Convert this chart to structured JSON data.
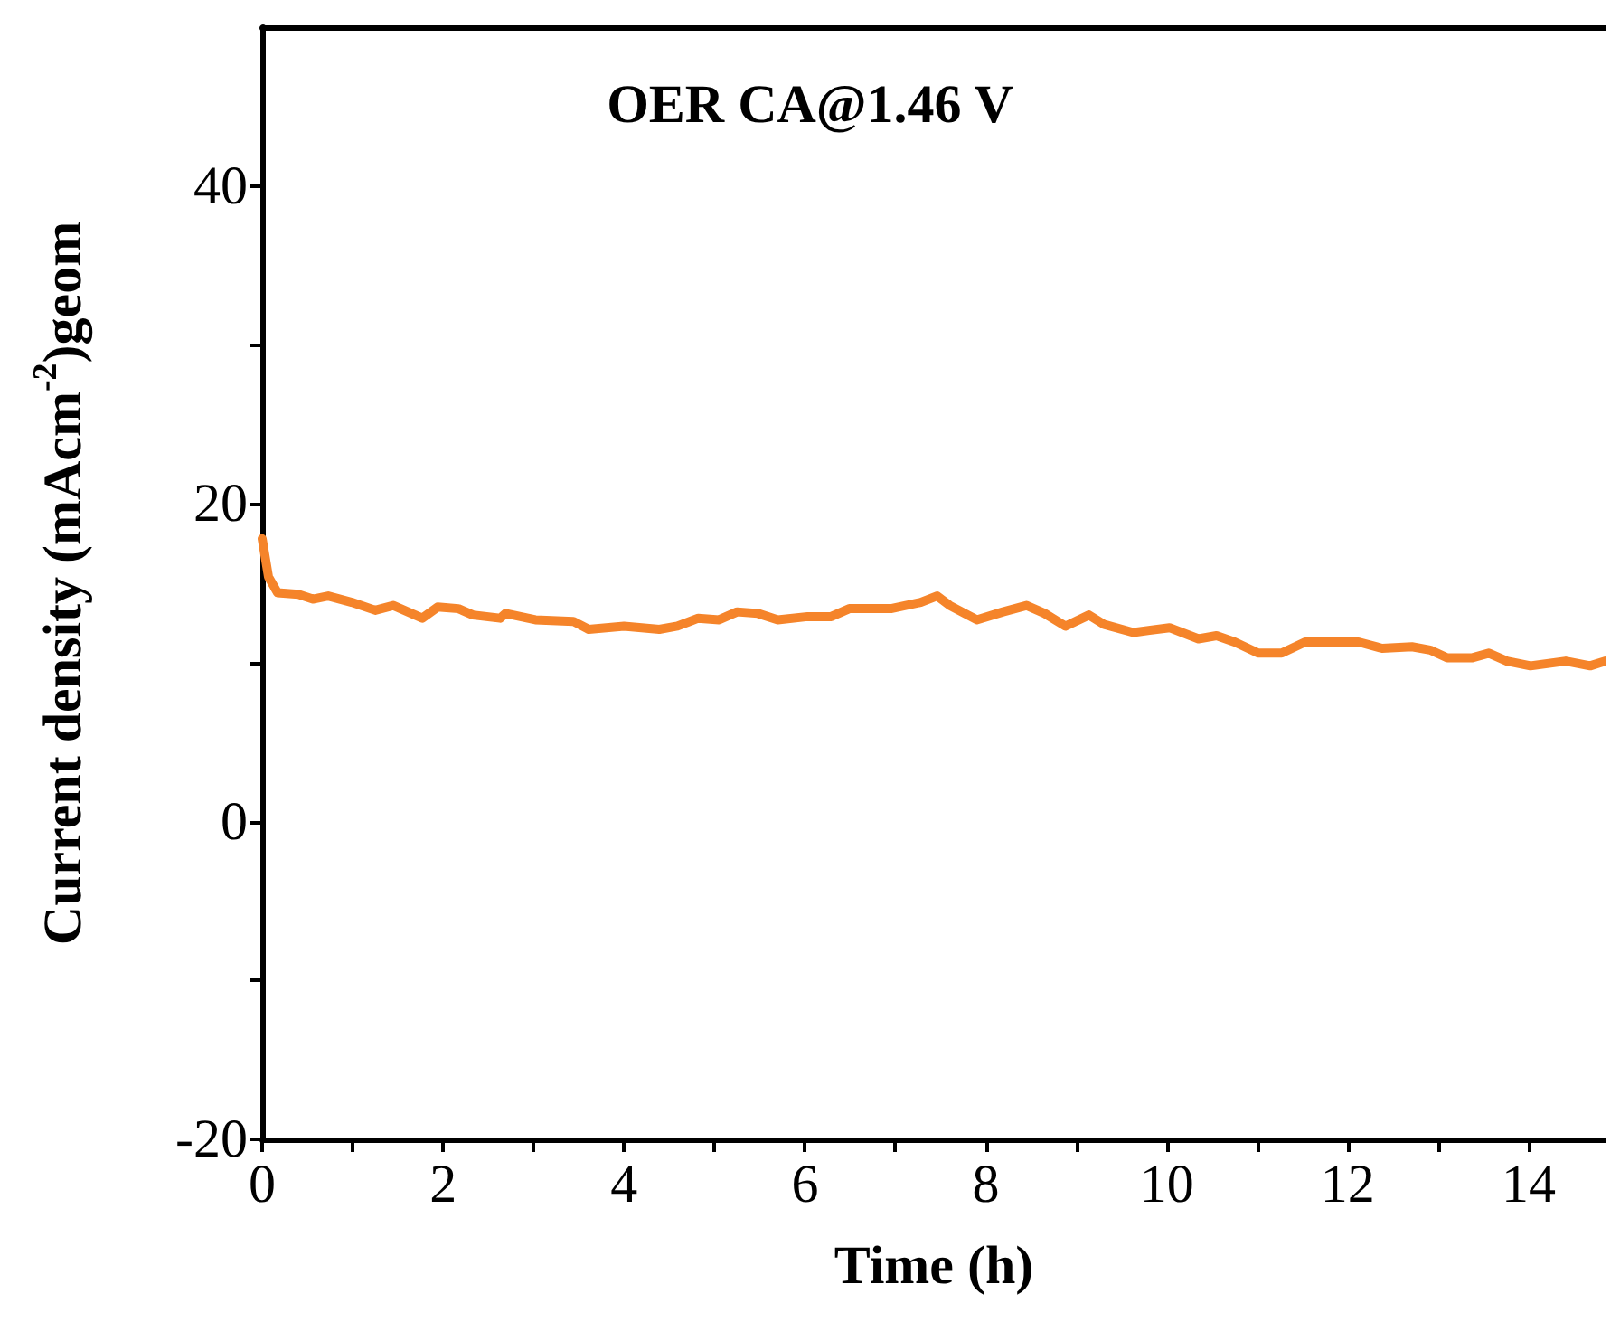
{
  "chart_data": {
    "type": "line",
    "title": "OER CA@1.46 V",
    "xlabel": "Time (h)",
    "ylabel": "Current density (mAcm$^{-2}$)geom",
    "xlim": [
      0,
      14.85
    ],
    "ylim": [
      -20,
      50
    ],
    "xticks": [
      0,
      {
        "value": 1,
        "label": null
      },
      2,
      {
        "value": 3,
        "label": null
      },
      4,
      {
        "value": 5,
        "label": null
      },
      6,
      {
        "value": 7,
        "label": null
      },
      8,
      {
        "value": 9,
        "label": null
      },
      10,
      {
        "value": 11,
        "label": null
      },
      12,
      {
        "value": 13,
        "label": null
      },
      14
    ],
    "yticks": [
      -20,
      {
        "value": -10,
        "label": null
      },
      0,
      {
        "value": 10,
        "label": null
      },
      20,
      {
        "value": 30,
        "label": null
      },
      40
    ],
    "grid": false,
    "marker": "none",
    "line_style": "solid",
    "series": [
      {
        "color": "#f5842a",
        "x": [
          0,
          0.07,
          0.17,
          0.4,
          0.56,
          0.73,
          0.99,
          1.25,
          1.45,
          1.77,
          1.94,
          2.17,
          2.33,
          2.63,
          2.69,
          3.02,
          3.44,
          3.61,
          4.0,
          4.39,
          4.59,
          4.82,
          5.05,
          5.25,
          5.48,
          5.7,
          6.03,
          6.29,
          6.49,
          6.95,
          7.28,
          7.46,
          7.6,
          7.9,
          8.19,
          8.45,
          8.65,
          8.88,
          9.14,
          9.31,
          9.63,
          10.03,
          10.35,
          10.55,
          10.75,
          11.01,
          11.27,
          11.53,
          12.12,
          12.38,
          12.71,
          12.91,
          13.1,
          13.37,
          13.56,
          13.76,
          14.02,
          14.41,
          14.68,
          14.85
        ],
        "values": [
          17.8,
          15.4,
          14.4,
          14.3,
          14.0,
          14.2,
          13.8,
          13.3,
          13.6,
          12.8,
          13.5,
          13.4,
          13.0,
          12.8,
          13.1,
          12.7,
          12.6,
          12.1,
          12.3,
          12.1,
          12.3,
          12.8,
          12.7,
          13.2,
          13.1,
          12.7,
          12.9,
          12.9,
          13.4,
          13.4,
          13.8,
          14.2,
          13.6,
          12.7,
          13.2,
          13.6,
          13.1,
          12.3,
          13.0,
          12.4,
          11.9,
          12.2,
          11.5,
          11.7,
          11.3,
          10.6,
          10.6,
          11.3,
          11.3,
          10.9,
          11.0,
          10.8,
          10.3,
          10.3,
          10.6,
          10.1,
          9.8,
          10.1,
          9.8,
          10.1
        ]
      }
    ]
  }
}
